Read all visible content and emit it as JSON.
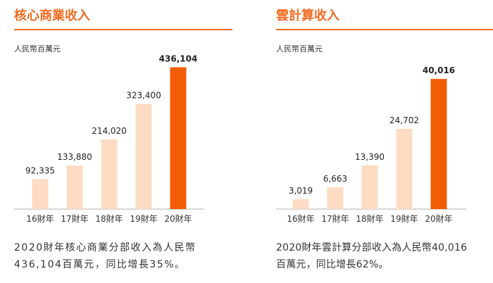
{
  "panels": [
    {
      "title": "核心商業收入",
      "unit": "人民幣百萬元",
      "caption_line1": "2020財年核心商業分部收入為人民幣",
      "caption_line2": "436,104百萬元，同比增長35%。"
    },
    {
      "title": "雲計算收入",
      "unit": "人民幣百萬元",
      "caption_line1": "2020財年雲計算分部收入為人民幣40,016",
      "caption_line2": "百萬元，同比增長62%。"
    }
  ],
  "colors": {
    "accent": "#f26b21",
    "bar_light": "#fddcc3",
    "bar_highlight": "#f25c05",
    "axis": "#b0b0b0"
  },
  "chart_data": [
    {
      "type": "bar",
      "title": "核心商業收入",
      "ylabel": "人民幣百萬元",
      "categories": [
        "16財年",
        "17財年",
        "18財年",
        "19財年",
        "20財年"
      ],
      "values": [
        92335,
        133880,
        214020,
        323400,
        436104
      ],
      "value_labels": [
        "92,335",
        "133,880",
        "214,020",
        "323,400",
        "436,104"
      ],
      "highlight_index": 4,
      "ylim": [
        0,
        500000
      ]
    },
    {
      "type": "bar",
      "title": "雲計算收入",
      "ylabel": "人民幣百萬元",
      "categories": [
        "16財年",
        "17財年",
        "18財年",
        "19財年",
        "20財年"
      ],
      "values": [
        3019,
        6663,
        13390,
        24702,
        40016
      ],
      "value_labels": [
        "3,019",
        "6,663",
        "13,390",
        "24,702",
        "40,016"
      ],
      "highlight_index": 4,
      "ylim": [
        0,
        50000
      ]
    }
  ]
}
